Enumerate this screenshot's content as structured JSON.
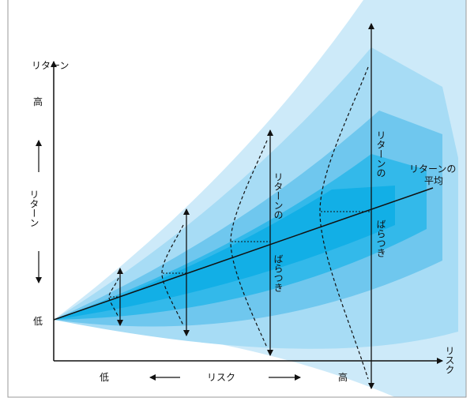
{
  "y_axis": {
    "title": "リターン",
    "high": "高",
    "label": "リターン",
    "low": "低"
  },
  "x_axis": {
    "title": "リスク",
    "low": "低",
    "label": "リスク",
    "high": "高"
  },
  "mean_label": {
    "line1": "リターンの",
    "line2": "平均"
  },
  "dispersion_label": {
    "part1": "リターンの",
    "part2": "ばらつき"
  },
  "colors": {
    "outer": "#cdeaf9",
    "mid": "#7fcdf0",
    "inner": "#18b1e6",
    "axis": "#111111",
    "frame": "#9a9a9a"
  }
}
